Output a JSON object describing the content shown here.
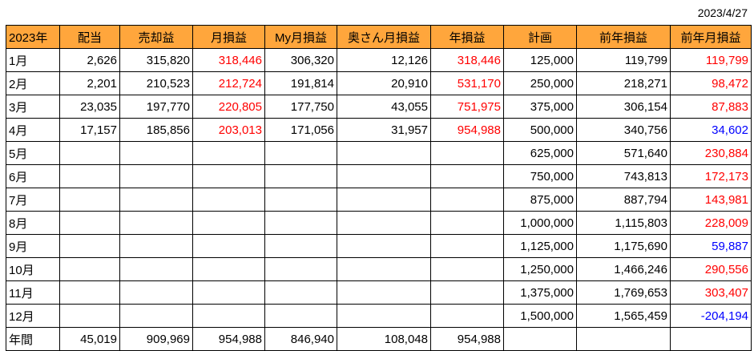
{
  "date": "2023/4/27",
  "headers": [
    "2023年",
    "配当",
    "売却益",
    "月損益",
    "My月損益",
    "奥さん月損益",
    "年損益",
    "計画",
    "前年損益",
    "前年月損益"
  ],
  "rows": [
    {
      "month": "1月",
      "dividend": "2,626",
      "sale_profit": "315,820",
      "monthly": "318,446",
      "my_monthly": "306,320",
      "wife_monthly": "12,126",
      "yearly": "318,446",
      "plan": "125,000",
      "prev_year": "119,799",
      "prev_monthly": "119,799",
      "prev_monthly_color": "red"
    },
    {
      "month": "2月",
      "dividend": "2,201",
      "sale_profit": "210,523",
      "monthly": "212,724",
      "my_monthly": "191,814",
      "wife_monthly": "20,910",
      "yearly": "531,170",
      "plan": "250,000",
      "prev_year": "218,271",
      "prev_monthly": "98,472",
      "prev_monthly_color": "red"
    },
    {
      "month": "3月",
      "dividend": "23,035",
      "sale_profit": "197,770",
      "monthly": "220,805",
      "my_monthly": "177,750",
      "wife_monthly": "43,055",
      "yearly": "751,975",
      "plan": "375,000",
      "prev_year": "306,154",
      "prev_monthly": "87,883",
      "prev_monthly_color": "red"
    },
    {
      "month": "4月",
      "dividend": "17,157",
      "sale_profit": "185,856",
      "monthly": "203,013",
      "my_monthly": "171,056",
      "wife_monthly": "31,957",
      "yearly": "954,988",
      "plan": "500,000",
      "prev_year": "340,756",
      "prev_monthly": "34,602",
      "prev_monthly_color": "blue"
    },
    {
      "month": "5月",
      "dividend": "",
      "sale_profit": "",
      "monthly": "",
      "my_monthly": "",
      "wife_monthly": "",
      "yearly": "",
      "plan": "625,000",
      "prev_year": "571,640",
      "prev_monthly": "230,884",
      "prev_monthly_color": "red"
    },
    {
      "month": "6月",
      "dividend": "",
      "sale_profit": "",
      "monthly": "",
      "my_monthly": "",
      "wife_monthly": "",
      "yearly": "",
      "plan": "750,000",
      "prev_year": "743,813",
      "prev_monthly": "172,173",
      "prev_monthly_color": "red"
    },
    {
      "month": "7月",
      "dividend": "",
      "sale_profit": "",
      "monthly": "",
      "my_monthly": "",
      "wife_monthly": "",
      "yearly": "",
      "plan": "875,000",
      "prev_year": "887,794",
      "prev_monthly": "143,981",
      "prev_monthly_color": "red"
    },
    {
      "month": "8月",
      "dividend": "",
      "sale_profit": "",
      "monthly": "",
      "my_monthly": "",
      "wife_monthly": "",
      "yearly": "",
      "plan": "1,000,000",
      "prev_year": "1,115,803",
      "prev_monthly": "228,009",
      "prev_monthly_color": "red"
    },
    {
      "month": "9月",
      "dividend": "",
      "sale_profit": "",
      "monthly": "",
      "my_monthly": "",
      "wife_monthly": "",
      "yearly": "",
      "plan": "1,125,000",
      "prev_year": "1,175,690",
      "prev_monthly": "59,887",
      "prev_monthly_color": "blue"
    },
    {
      "month": "10月",
      "dividend": "",
      "sale_profit": "",
      "monthly": "",
      "my_monthly": "",
      "wife_monthly": "",
      "yearly": "",
      "plan": "1,250,000",
      "prev_year": "1,466,246",
      "prev_monthly": "290,556",
      "prev_monthly_color": "red"
    },
    {
      "month": "11月",
      "dividend": "",
      "sale_profit": "",
      "monthly": "",
      "my_monthly": "",
      "wife_monthly": "",
      "yearly": "",
      "plan": "1,375,000",
      "prev_year": "1,769,653",
      "prev_monthly": "303,407",
      "prev_monthly_color": "red"
    },
    {
      "month": "12月",
      "dividend": "",
      "sale_profit": "",
      "monthly": "",
      "my_monthly": "",
      "wife_monthly": "",
      "yearly": "",
      "plan": "1,500,000",
      "prev_year": "1,565,459",
      "prev_monthly": "-204,194",
      "prev_monthly_color": "blue"
    }
  ],
  "total": {
    "label": "年間",
    "dividend": "45,019",
    "sale_profit": "909,969",
    "monthly": "954,988",
    "my_monthly": "846,940",
    "wife_monthly": "108,048",
    "yearly": "954,988",
    "plan": "",
    "prev_year": "",
    "prev_monthly": ""
  },
  "colors": {
    "header_bg": "#ffa63c",
    "positive": "#ff0000",
    "negative": "#0000ff",
    "border": "#000000"
  }
}
